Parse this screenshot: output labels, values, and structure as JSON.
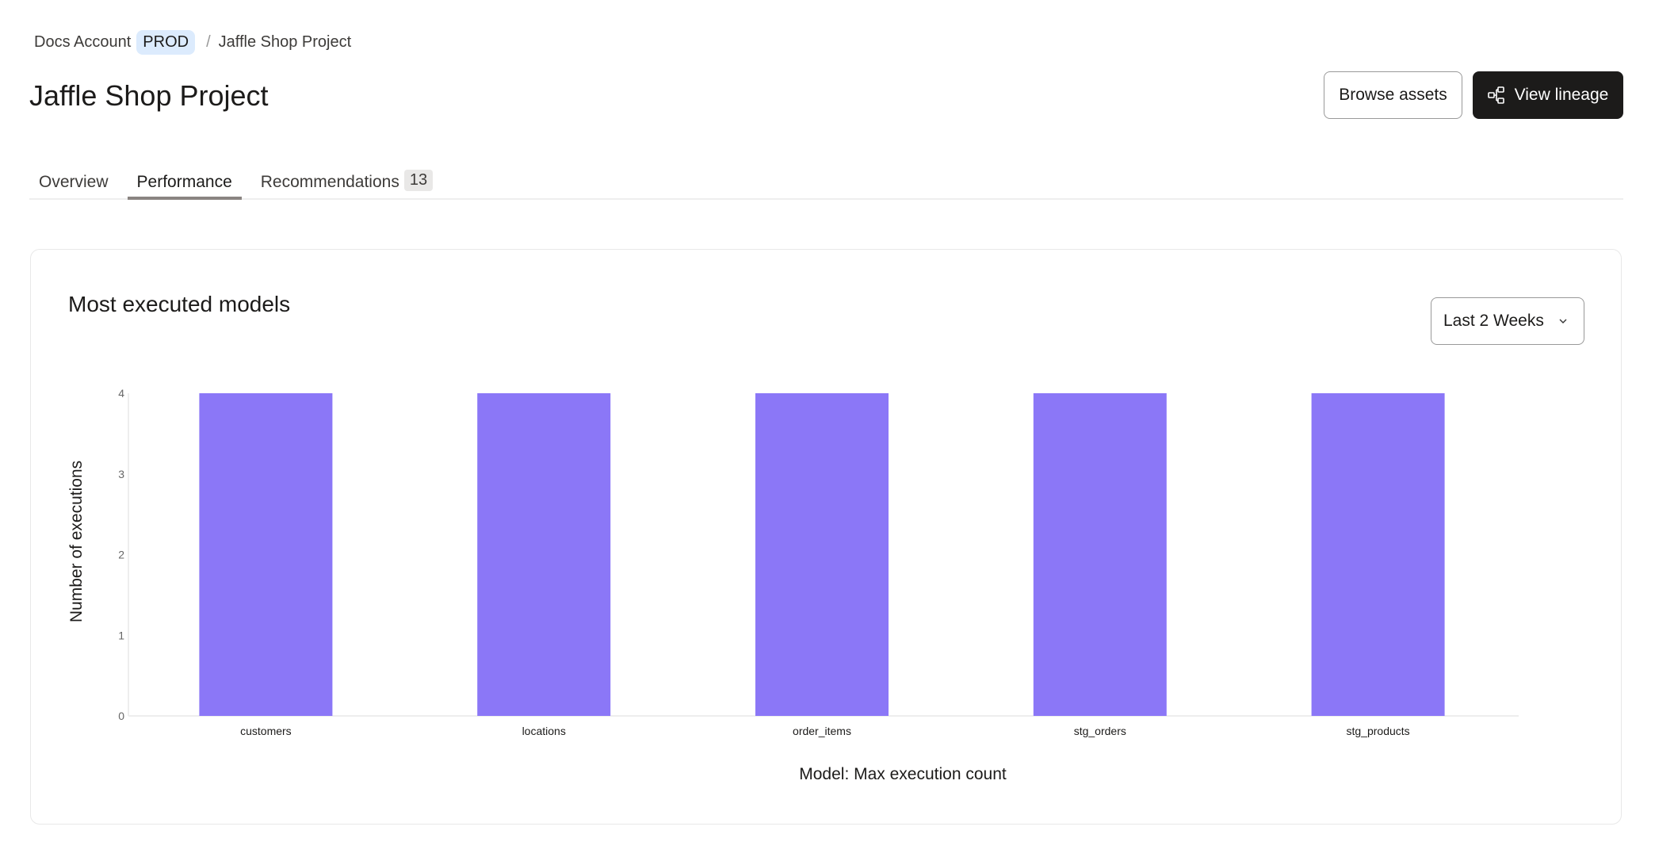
{
  "breadcrumb": {
    "account": "Docs Account",
    "env_badge": "PROD",
    "separator": "/",
    "project": "Jaffle Shop Project"
  },
  "header": {
    "title": "Jaffle Shop Project",
    "browse_label": "Browse assets",
    "lineage_label": "View lineage",
    "lineage_icon": "lineage-icon"
  },
  "tabs": [
    {
      "label": "Overview"
    },
    {
      "label": "Performance",
      "active": true
    },
    {
      "label": "Recommendations",
      "count": "13"
    }
  ],
  "card": {
    "title": "Most executed models",
    "range_select": "Last 2 Weeks"
  },
  "chart_data": {
    "type": "bar",
    "title": "",
    "xlabel": "Model: Max execution count",
    "ylabel": "Number of executions",
    "categories": [
      "customers",
      "locations",
      "order_items",
      "stg_orders",
      "stg_products"
    ],
    "values": [
      4,
      4,
      4,
      4,
      4
    ],
    "ylim": [
      0,
      4
    ],
    "yticks": [
      0,
      1,
      2,
      3,
      4
    ],
    "grid": false,
    "bar_color": "#8b77f7"
  }
}
